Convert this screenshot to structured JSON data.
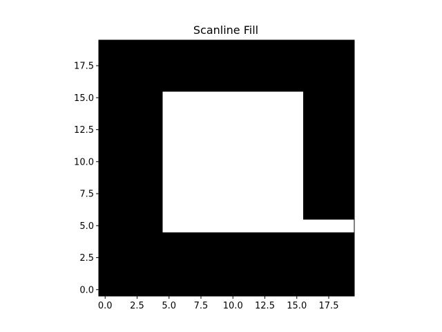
{
  "chart_data": {
    "type": "heatmap",
    "title": "Scanline Fill",
    "xlabel": "",
    "ylabel": "",
    "grid": false,
    "colormap": {
      "0": "#000000",
      "1": "#ffffff"
    },
    "xlim": [
      -0.5,
      19.5
    ],
    "ylim": [
      -0.5,
      19.5
    ],
    "x_ticks": [
      0.0,
      2.5,
      5.0,
      7.5,
      10.0,
      12.5,
      15.0,
      17.5
    ],
    "x_tick_labels": [
      "0.0",
      "2.5",
      "5.0",
      "7.5",
      "10.0",
      "12.5",
      "15.0",
      "17.5"
    ],
    "y_ticks": [
      0.0,
      2.5,
      5.0,
      7.5,
      10.0,
      12.5,
      15.0,
      17.5
    ],
    "y_tick_labels": [
      "0.0",
      "2.5",
      "5.0",
      "7.5",
      "10.0",
      "12.5",
      "15.0",
      "17.5"
    ],
    "grid_shape": [
      20,
      20
    ],
    "background_value": 0,
    "filled_regions": [
      {
        "value": 1,
        "x": [
          5,
          15
        ],
        "y": [
          5,
          15
        ]
      },
      {
        "value": 1,
        "x": [
          16,
          19
        ],
        "y": [
          5,
          5
        ]
      }
    ]
  }
}
